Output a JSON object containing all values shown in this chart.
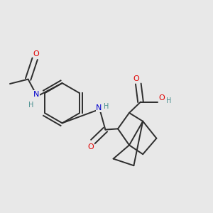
{
  "bg_color": "#e8e8e8",
  "bond_color": "#2d2d2d",
  "atom_colors": {
    "O": "#e00000",
    "N": "#0000cc",
    "H": "#4a9090",
    "C": "#2d2d2d"
  },
  "figsize": [
    3.0,
    3.0
  ],
  "dpi": 100
}
